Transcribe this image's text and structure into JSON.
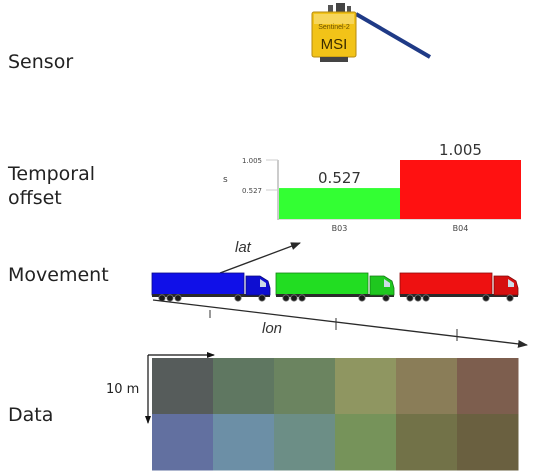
{
  "labels": {
    "sensor": "Sensor",
    "temporal_offset_line1": "Temporal",
    "temporal_offset_line2": "offset",
    "movement": "Movement",
    "data": "Data"
  },
  "sensor": {
    "top_text": "Sentinel-2",
    "main_text": "MSI",
    "body_color": "#f2c318",
    "panel_color": "#1f3a86"
  },
  "chart_data": {
    "type": "bar",
    "categories": [
      "B03",
      "B04"
    ],
    "values": [
      0.527,
      1.005
    ],
    "value_labels": [
      "0.527",
      "1.005"
    ],
    "ytick_labels": [
      "1.005",
      "0.527"
    ],
    "ylabel": "s",
    "ylim": [
      0,
      1.005
    ],
    "colors": [
      "#33ff33",
      "#ff1111"
    ],
    "title": "",
    "xlabel": ""
  },
  "movement": {
    "lat_label": "lat",
    "lon_label": "lon",
    "trucks": [
      {
        "name": "truck-blue",
        "color": "#1010e8"
      },
      {
        "name": "truck-green",
        "color": "#22dd22"
      },
      {
        "name": "truck-red",
        "color": "#ee1111"
      }
    ]
  },
  "data_grid": {
    "scale_label": "10 m",
    "rows": [
      [
        "#565c5b",
        "#5f7761",
        "#6b8460",
        "#8f9661",
        "#8a7d58",
        "#7d5e4e"
      ],
      [
        "#6270a0",
        "#6c8fa6",
        "#6c8e86",
        "#76935a",
        "#727248",
        "#6a6040"
      ]
    ]
  }
}
